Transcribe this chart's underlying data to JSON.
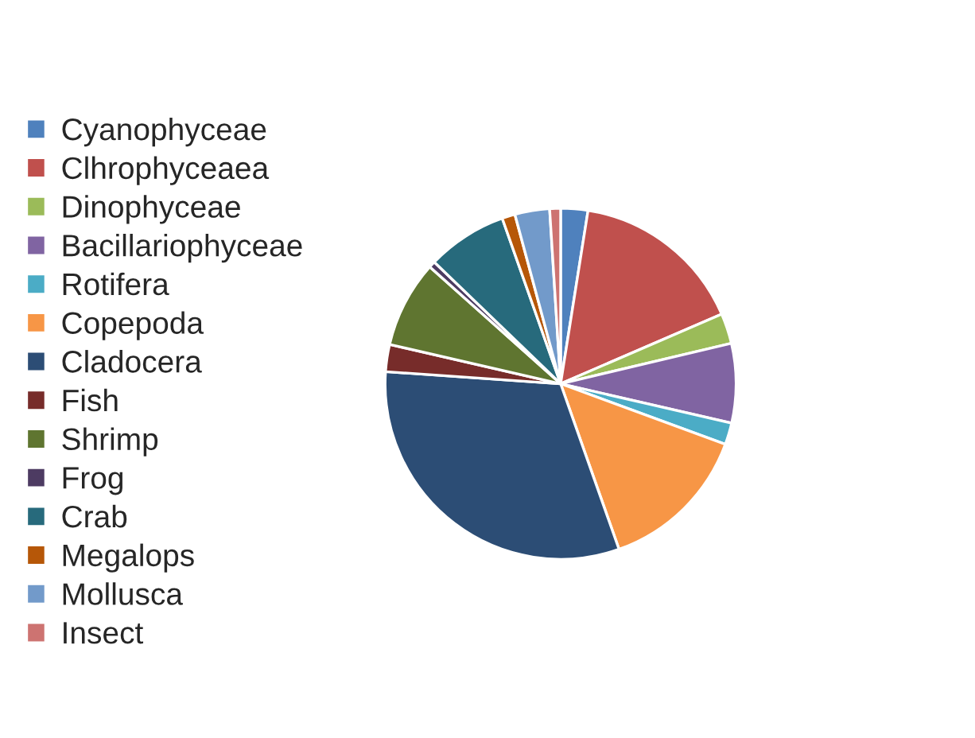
{
  "chart_data": {
    "type": "pie",
    "categories": [
      "Cyanophyceae",
      "Clhrophyceaea",
      "Dinophyceae",
      "Bacillariophyceae",
      "Rotifera",
      "Copepoda",
      "Cladocera",
      "Fish",
      "Shrimp",
      "Frog",
      "Crab",
      "Megalops",
      "Mollusca",
      "Insect"
    ],
    "values": [
      2.5,
      16,
      2.8,
      7.3,
      2,
      14,
      31.5,
      2.5,
      8,
      0.6,
      7.4,
      1.2,
      3.2,
      1
    ],
    "colors": [
      "#4f81bd",
      "#c0504d",
      "#9bbb59",
      "#8064a2",
      "#4bacc6",
      "#f79646",
      "#2c4d75",
      "#772c2a",
      "#5f7530",
      "#4d3b62",
      "#276a7c",
      "#b65708",
      "#729aca",
      "#cd7371"
    ],
    "legend": "left"
  }
}
